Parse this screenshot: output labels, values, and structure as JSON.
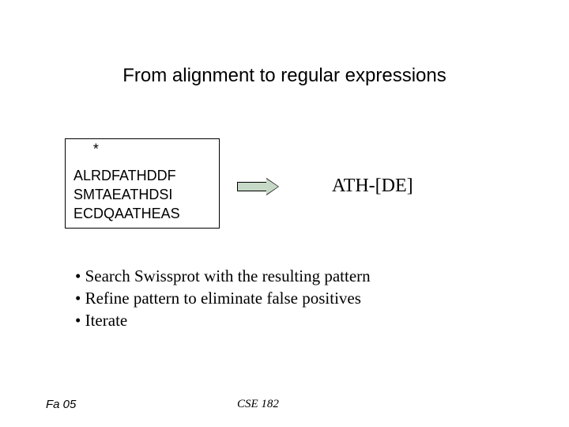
{
  "title": "From alignment to regular expressions",
  "alignment": {
    "marker": "*",
    "seq1": "ALRDFATHDDF",
    "seq2": "SMTAEATHDSI",
    "seq3": "ECDQAATHEAS",
    "box": {
      "border_color": "#000000",
      "background": "#ffffff"
    }
  },
  "arrow": {
    "fill": "#c6d9c6",
    "stroke": "#000000"
  },
  "regex_text": "ATH-[DE]",
  "bullets": [
    "Search Swissprot with the resulting pattern",
    "Refine pattern to eliminate false positives",
    "Iterate"
  ],
  "footer": {
    "left": "Fa 05",
    "center": "CSE 182"
  },
  "colors": {
    "background": "#ffffff",
    "text": "#000000"
  },
  "fonts": {
    "title": "Arial",
    "body": "Times New Roman",
    "mono_like": "Arial"
  }
}
